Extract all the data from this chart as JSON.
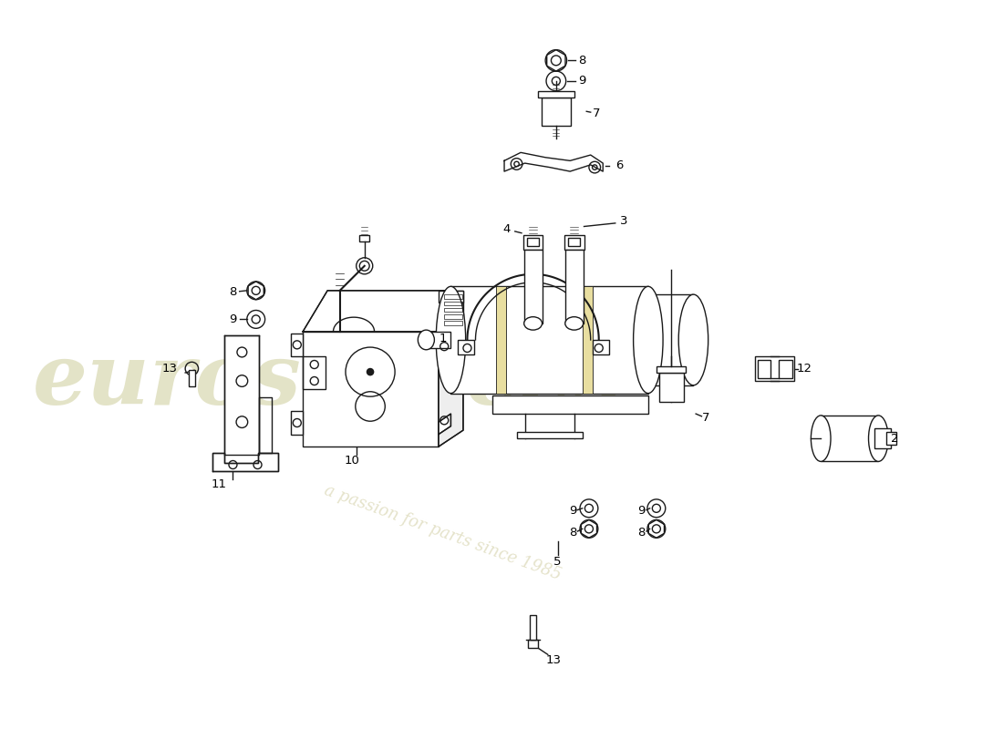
{
  "background_color": "#ffffff",
  "line_color": "#1a1a1a",
  "watermark_color1": "#c8c890",
  "watermark_color2": "#d0cca0",
  "fig_width": 11.0,
  "fig_height": 8.0,
  "dpi": 100,
  "lw": 1.0
}
